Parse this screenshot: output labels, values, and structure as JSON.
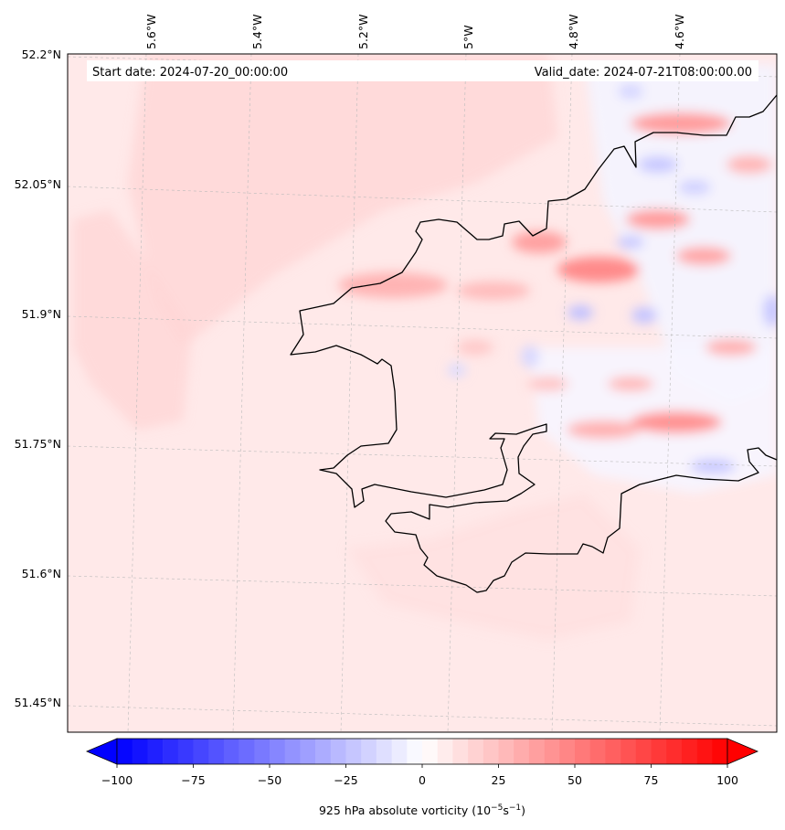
{
  "info": {
    "start_date": "Start date: 2024-07-20_00:00:00",
    "valid_date": "Valid_date: 2024-07-21T08:00:00.00"
  },
  "longitude_labels": [
    "5.6°W",
    "5.4°W",
    "5.2°W",
    "5°W",
    "4.8°W",
    "4.6°W"
  ],
  "latitude_labels": [
    "52.2°N",
    "52.05°N",
    "51.9°N",
    "51.75°N",
    "51.6°N",
    "51.45°N"
  ],
  "colorbar": {
    "min": -100,
    "max": 100,
    "step": 5,
    "ticks": [
      "−100",
      "−75",
      "−50",
      "−25",
      "0",
      "25",
      "50",
      "75",
      "100"
    ],
    "tick_values": [
      -100,
      -75,
      -50,
      -25,
      0,
      25,
      50,
      75,
      100
    ],
    "label_main": "925 hPa absolute vorticity (10",
    "label_sup1": "−5",
    "label_mid": "s",
    "label_sup2": "−1",
    "label_end": ")",
    "colors": {
      "negative": "#0000ff",
      "zero": "#ffffff",
      "positive": "#ff0000"
    }
  },
  "map": {
    "field": "925 hPa absolute vorticity",
    "background_color": "#ffe8e8",
    "coastline_color": "#000000",
    "gridlines": "dashed light grey"
  }
}
